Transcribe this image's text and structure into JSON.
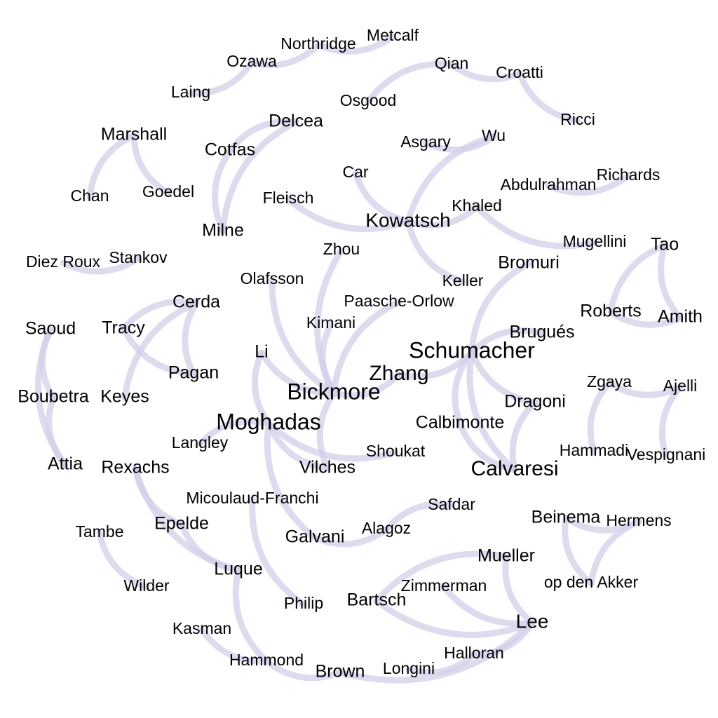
{
  "graph": {
    "type": "coauthorship-network",
    "edge_color": "#d5cdea",
    "label_color": "#000000",
    "nodes": [
      {
        "id": "northridge",
        "label": "Northridge",
        "weight": 1
      },
      {
        "id": "metcalf",
        "label": "Metcalf",
        "weight": 1
      },
      {
        "id": "ozawa",
        "label": "Ozawa",
        "weight": 1
      },
      {
        "id": "qian",
        "label": "Qian",
        "weight": 1
      },
      {
        "id": "croatti",
        "label": "Croatti",
        "weight": 1
      },
      {
        "id": "laing",
        "label": "Laing",
        "weight": 1
      },
      {
        "id": "osgood",
        "label": "Osgood",
        "weight": 1
      },
      {
        "id": "ricci",
        "label": "Ricci",
        "weight": 1
      },
      {
        "id": "delcea",
        "label": "Delcea",
        "weight": 2
      },
      {
        "id": "marshall",
        "label": "Marshall",
        "weight": 2
      },
      {
        "id": "wu",
        "label": "Wu",
        "weight": 1
      },
      {
        "id": "asgary",
        "label": "Asgary",
        "weight": 1
      },
      {
        "id": "cotfas",
        "label": "Cotfas",
        "weight": 2
      },
      {
        "id": "car",
        "label": "Car",
        "weight": 1
      },
      {
        "id": "richards",
        "label": "Richards",
        "weight": 1
      },
      {
        "id": "abdulrahman",
        "label": "Abdulrahman",
        "weight": 1
      },
      {
        "id": "chan",
        "label": "Chan",
        "weight": 1
      },
      {
        "id": "goedel",
        "label": "Goedel",
        "weight": 1
      },
      {
        "id": "fleisch",
        "label": "Fleisch",
        "weight": 1
      },
      {
        "id": "khaled",
        "label": "Khaled",
        "weight": 1
      },
      {
        "id": "kowatsch",
        "label": "Kowatsch",
        "weight": 3
      },
      {
        "id": "milne",
        "label": "Milne",
        "weight": 2
      },
      {
        "id": "mugellini",
        "label": "Mugellini",
        "weight": 1
      },
      {
        "id": "tao",
        "label": "Tao",
        "weight": 2
      },
      {
        "id": "zhou",
        "label": "Zhou",
        "weight": 1
      },
      {
        "id": "diezroux",
        "label": "Diez Roux",
        "weight": 1
      },
      {
        "id": "stankov",
        "label": "Stankov",
        "weight": 1
      },
      {
        "id": "bromuri",
        "label": "Bromuri",
        "weight": 2
      },
      {
        "id": "olafsson",
        "label": "Olafsson",
        "weight": 1
      },
      {
        "id": "keller",
        "label": "Keller",
        "weight": 1
      },
      {
        "id": "cerda",
        "label": "Cerda",
        "weight": 2
      },
      {
        "id": "paaschoorlow",
        "label": "Paasche-Orlow",
        "weight": 1
      },
      {
        "id": "roberts",
        "label": "Roberts",
        "weight": 2
      },
      {
        "id": "amith",
        "label": "Amith",
        "weight": 2
      },
      {
        "id": "kimani",
        "label": "Kimani",
        "weight": 1
      },
      {
        "id": "saoud",
        "label": "Saoud",
        "weight": 2
      },
      {
        "id": "tracy",
        "label": "Tracy",
        "weight": 2
      },
      {
        "id": "brugues",
        "label": "Brugués",
        "weight": 2
      },
      {
        "id": "schumacher",
        "label": "Schumacher",
        "weight": 5
      },
      {
        "id": "li",
        "label": "Li",
        "weight": 2
      },
      {
        "id": "zhang",
        "label": "Zhang",
        "weight": 4
      },
      {
        "id": "pagan",
        "label": "Pagan",
        "weight": 2
      },
      {
        "id": "zgaya",
        "label": "Zgaya",
        "weight": 1
      },
      {
        "id": "ajelli",
        "label": "Ajelli",
        "weight": 1
      },
      {
        "id": "bickmore",
        "label": "Bickmore",
        "weight": 5
      },
      {
        "id": "boubetra",
        "label": "Boubetra",
        "weight": 2
      },
      {
        "id": "keyes",
        "label": "Keyes",
        "weight": 2
      },
      {
        "id": "dragoni",
        "label": "Dragoni",
        "weight": 2
      },
      {
        "id": "moghadas",
        "label": "Moghadas",
        "weight": 5
      },
      {
        "id": "calbimonte",
        "label": "Calbimonte",
        "weight": 2
      },
      {
        "id": "langley",
        "label": "Langley",
        "weight": 1
      },
      {
        "id": "shoukat",
        "label": "Shoukat",
        "weight": 1
      },
      {
        "id": "hammadi",
        "label": "Hammadi",
        "weight": 1
      },
      {
        "id": "vespignani",
        "label": "Vespignani",
        "weight": 1
      },
      {
        "id": "attia",
        "label": "Attia",
        "weight": 2
      },
      {
        "id": "rexachs",
        "label": "Rexachs",
        "weight": 2
      },
      {
        "id": "vilches",
        "label": "Vilches",
        "weight": 2
      },
      {
        "id": "calvaresi",
        "label": "Calvaresi",
        "weight": 4
      },
      {
        "id": "micoulaud",
        "label": "Micoulaud-Franchi",
        "weight": 1
      },
      {
        "id": "safdar",
        "label": "Safdar",
        "weight": 1
      },
      {
        "id": "beinema",
        "label": "Beinema",
        "weight": 2
      },
      {
        "id": "hermens",
        "label": "Hermens",
        "weight": 1
      },
      {
        "id": "epelde",
        "label": "Epelde",
        "weight": 2
      },
      {
        "id": "tambe",
        "label": "Tambe",
        "weight": 1
      },
      {
        "id": "alagoz",
        "label": "Alagoz",
        "weight": 1
      },
      {
        "id": "galvani",
        "label": "Galvani",
        "weight": 2
      },
      {
        "id": "mueller",
        "label": "Mueller",
        "weight": 2
      },
      {
        "id": "luque",
        "label": "Luque",
        "weight": 2
      },
      {
        "id": "wilder",
        "label": "Wilder",
        "weight": 1
      },
      {
        "id": "zimmerman",
        "label": "Zimmerman",
        "weight": 1
      },
      {
        "id": "opdenakker",
        "label": "op den Akker",
        "weight": 1
      },
      {
        "id": "philip",
        "label": "Philip",
        "weight": 1
      },
      {
        "id": "bartsch",
        "label": "Bartsch",
        "weight": 2
      },
      {
        "id": "lee",
        "label": "Lee",
        "weight": 3
      },
      {
        "id": "kasman",
        "label": "Kasman",
        "weight": 1
      },
      {
        "id": "halloran",
        "label": "Halloran",
        "weight": 1
      },
      {
        "id": "hammond",
        "label": "Hammond",
        "weight": 1
      },
      {
        "id": "brown",
        "label": "Brown",
        "weight": 2
      },
      {
        "id": "longini",
        "label": "Longini",
        "weight": 1
      }
    ],
    "edges": [
      [
        "northridge",
        "metcalf"
      ],
      [
        "ozawa",
        "northridge"
      ],
      [
        "laing",
        "ozawa"
      ],
      [
        "qian",
        "osgood"
      ],
      [
        "qian",
        "croatti"
      ],
      [
        "croatti",
        "ricci"
      ],
      [
        "asgary",
        "wu"
      ],
      [
        "wu",
        "kowatsch"
      ],
      [
        "marshall",
        "chan"
      ],
      [
        "marshall",
        "goedel"
      ],
      [
        "delcea",
        "cotfas"
      ],
      [
        "delcea",
        "milne"
      ],
      [
        "cotfas",
        "milne"
      ],
      [
        "fleisch",
        "kowatsch"
      ],
      [
        "car",
        "kowatsch"
      ],
      [
        "kowatsch",
        "khaled"
      ],
      [
        "kowatsch",
        "keller"
      ],
      [
        "khaled",
        "mugellini"
      ],
      [
        "abdulrahman",
        "richards"
      ],
      [
        "zhou",
        "bickmore"
      ],
      [
        "olafsson",
        "bickmore"
      ],
      [
        "kimani",
        "bickmore"
      ],
      [
        "paaschoorlow",
        "bickmore"
      ],
      [
        "bickmore",
        "zhang"
      ],
      [
        "li",
        "bickmore"
      ],
      [
        "li",
        "moghadas"
      ],
      [
        "bickmore",
        "vilches"
      ],
      [
        "tao",
        "roberts"
      ],
      [
        "tao",
        "amith"
      ],
      [
        "roberts",
        "amith"
      ],
      [
        "diezroux",
        "stankov"
      ],
      [
        "cerda",
        "tracy"
      ],
      [
        "cerda",
        "keyes"
      ],
      [
        "tracy",
        "pagan"
      ],
      [
        "saoud",
        "boubetra"
      ],
      [
        "saoud",
        "attia"
      ],
      [
        "boubetra",
        "attia"
      ],
      [
        "cerda",
        "pagan"
      ],
      [
        "bromuri",
        "schumacher"
      ],
      [
        "brugues",
        "schumacher"
      ],
      [
        "schumacher",
        "calvaresi"
      ],
      [
        "schumacher",
        "dragoni"
      ],
      [
        "schumacher",
        "calbimonte"
      ],
      [
        "calbimonte",
        "calvaresi"
      ],
      [
        "dragoni",
        "calvaresi"
      ],
      [
        "zhang",
        "schumacher"
      ],
      [
        "zgaya",
        "hammadi"
      ],
      [
        "ajelli",
        "vespignani"
      ],
      [
        "zgaya",
        "ajelli"
      ],
      [
        "moghadas",
        "galvani"
      ],
      [
        "moghadas",
        "shoukat"
      ],
      [
        "moghadas",
        "langley"
      ],
      [
        "moghadas",
        "vilches"
      ],
      [
        "rexachs",
        "epelde"
      ],
      [
        "rexachs",
        "luque"
      ],
      [
        "epelde",
        "luque"
      ],
      [
        "tambe",
        "wilder"
      ],
      [
        "micoulaud",
        "philip"
      ],
      [
        "safdar",
        "alagoz"
      ],
      [
        "galvani",
        "alagoz"
      ],
      [
        "beinema",
        "hermens"
      ],
      [
        "beinema",
        "opdenakker"
      ],
      [
        "hermens",
        "opdenakker"
      ],
      [
        "mueller",
        "lee"
      ],
      [
        "zimmerman",
        "lee"
      ],
      [
        "bartsch",
        "lee"
      ],
      [
        "mueller",
        "bartsch"
      ],
      [
        "kasman",
        "hammond"
      ],
      [
        "hammond",
        "brown"
      ],
      [
        "brown",
        "lee"
      ],
      [
        "longini",
        "halloran"
      ],
      [
        "halloran",
        "lee"
      ],
      [
        "luque",
        "hammond"
      ]
    ]
  }
}
